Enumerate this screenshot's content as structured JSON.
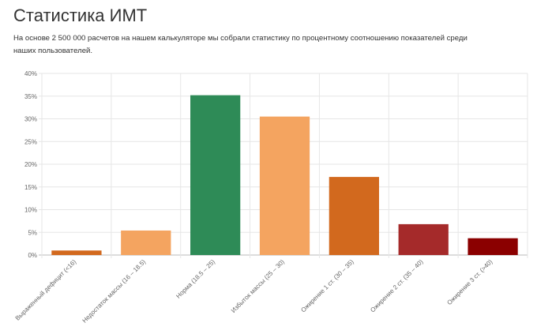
{
  "page": {
    "title": "Статистика ИМТ",
    "description": "На основе 2 500 000 расчетов на нашем калькуляторе мы собрали статистику по процентному соотношению показателей среди наших пользователей."
  },
  "chart_data": {
    "type": "bar",
    "title": "",
    "xlabel": "",
    "ylabel": "",
    "ylim": [
      0,
      40
    ],
    "yticks": [
      0,
      5,
      10,
      15,
      20,
      25,
      30,
      35,
      40
    ],
    "ytick_suffix": "%",
    "grid": true,
    "legend": "none",
    "categories": [
      "Выраженный дефицит (<16)",
      "Недостаток массы (16 – 18.5)",
      "Норма (18.5 – 25)",
      "Избыток массы (25 – 30)",
      "Ожирение 1 ст. (30 – 35)",
      "Ожирение 2 ст. (35 – 40)",
      "Ожирение 3 ст. (>40)"
    ],
    "values": [
      1.0,
      5.4,
      35.2,
      30.5,
      17.2,
      6.8,
      3.7
    ],
    "colors": [
      "#d2691e",
      "#f4a460",
      "#2e8b57",
      "#f4a460",
      "#d2691e",
      "#a52a2a",
      "#8b0000"
    ]
  }
}
